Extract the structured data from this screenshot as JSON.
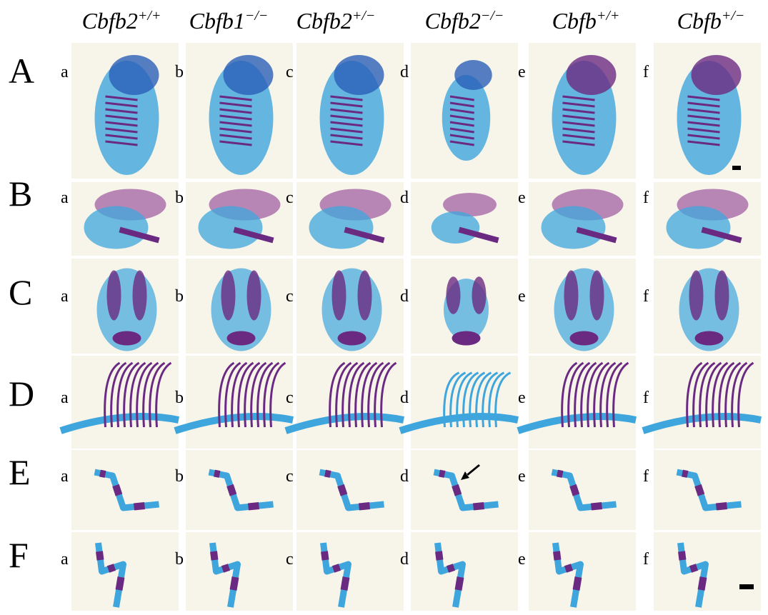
{
  "columns": [
    {
      "gene": "Cbfb2",
      "genotype": "+/+"
    },
    {
      "gene": "Cbfb1",
      "genotype": "−/−"
    },
    {
      "gene": "Cbfb2",
      "genotype": "+/−"
    },
    {
      "gene": "Cbfb2",
      "genotype": "−/−"
    },
    {
      "gene": "Cbfb",
      "genotype": "+/+"
    },
    {
      "gene": "Cbfb",
      "genotype": "+/−"
    }
  ],
  "rows": [
    {
      "label": "A",
      "panels": [
        "a",
        "b",
        "c",
        "d",
        "e",
        "f"
      ]
    },
    {
      "label": "B",
      "panels": [
        "a",
        "b",
        "c",
        "d",
        "e",
        "f"
      ]
    },
    {
      "label": "C",
      "panels": [
        "a",
        "b",
        "c",
        "d",
        "e",
        "f"
      ]
    },
    {
      "label": "D",
      "panels": [
        "a",
        "b",
        "c",
        "d",
        "e",
        "f"
      ]
    },
    {
      "label": "E",
      "panels": [
        "a",
        "b",
        "c",
        "d",
        "e",
        "f"
      ]
    },
    {
      "label": "F",
      "panels": [
        "a",
        "b",
        "c",
        "d",
        "e",
        "f"
      ]
    }
  ]
}
